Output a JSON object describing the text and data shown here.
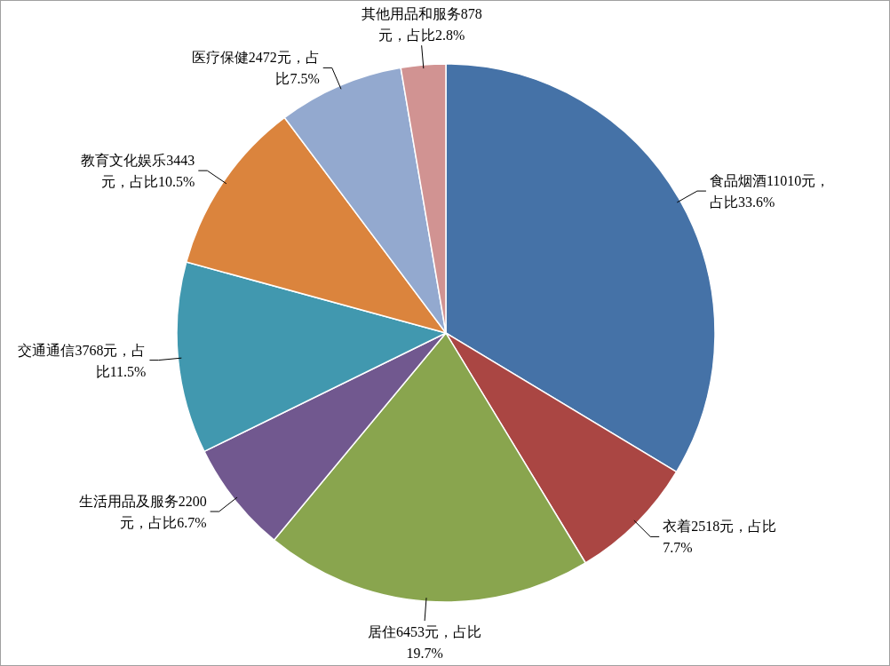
{
  "chart_data": {
    "type": "pie",
    "categories": [
      "食品烟酒",
      "衣着",
      "居住",
      "生活用品及服务",
      "交通通信",
      "教育文化娱乐",
      "医疗保健",
      "其他用品和服务"
    ],
    "values": [
      11010,
      2518,
      6453,
      2200,
      3768,
      3443,
      2472,
      878
    ],
    "colors": [
      "#4572a7",
      "#aa4643",
      "#89a54e",
      "#71588f",
      "#4198af",
      "#db843d",
      "#93a9cf",
      "#d19392"
    ],
    "value_labels": [
      "11010元，占比33.6%",
      "2518元，占比7.7%",
      "6453元，占比19.7%",
      "2200元，占比6.7%",
      "3768元，占比11.5%",
      "3443元，占比10.5%",
      "2472元，占比7.5%",
      "878元，占比2.8%"
    ]
  }
}
